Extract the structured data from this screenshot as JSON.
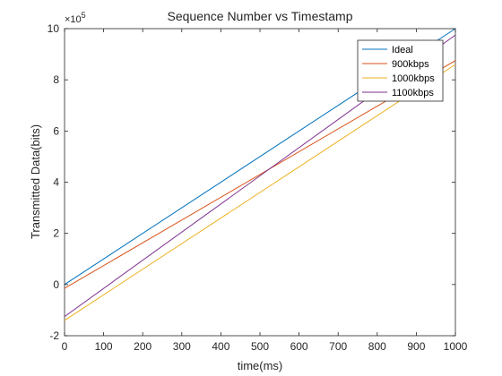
{
  "chart_data": {
    "type": "line",
    "title": "Sequence Number vs Timestamp",
    "xlabel": "time(ms)",
    "ylabel": "Transmitted Data(bits)",
    "y_exponent_label": "×10",
    "y_exponent_power": "5",
    "y_multiplier": 100000,
    "xlim": [
      0,
      1000
    ],
    "ylim": [
      -2,
      10
    ],
    "x_ticks": [
      0,
      100,
      200,
      300,
      400,
      500,
      600,
      700,
      800,
      900,
      1000
    ],
    "y_ticks": [
      -2,
      0,
      2,
      4,
      6,
      8,
      10
    ],
    "grid": false,
    "legend_position": "top-right",
    "series": [
      {
        "name": "Ideal",
        "color": "#0072BD",
        "x": [
          0,
          1000
        ],
        "y": [
          0.0,
          10.0
        ]
      },
      {
        "name": "900kbps",
        "color": "#D95319",
        "x": [
          0,
          1000
        ],
        "y": [
          -0.15,
          8.75
        ]
      },
      {
        "name": "1000kbps",
        "color": "#EDB120",
        "x": [
          0,
          1000
        ],
        "y": [
          -1.4,
          8.6
        ]
      },
      {
        "name": "1100kbps",
        "color": "#7E2F8E",
        "x": [
          0,
          1000
        ],
        "y": [
          -1.25,
          9.75
        ]
      }
    ]
  }
}
